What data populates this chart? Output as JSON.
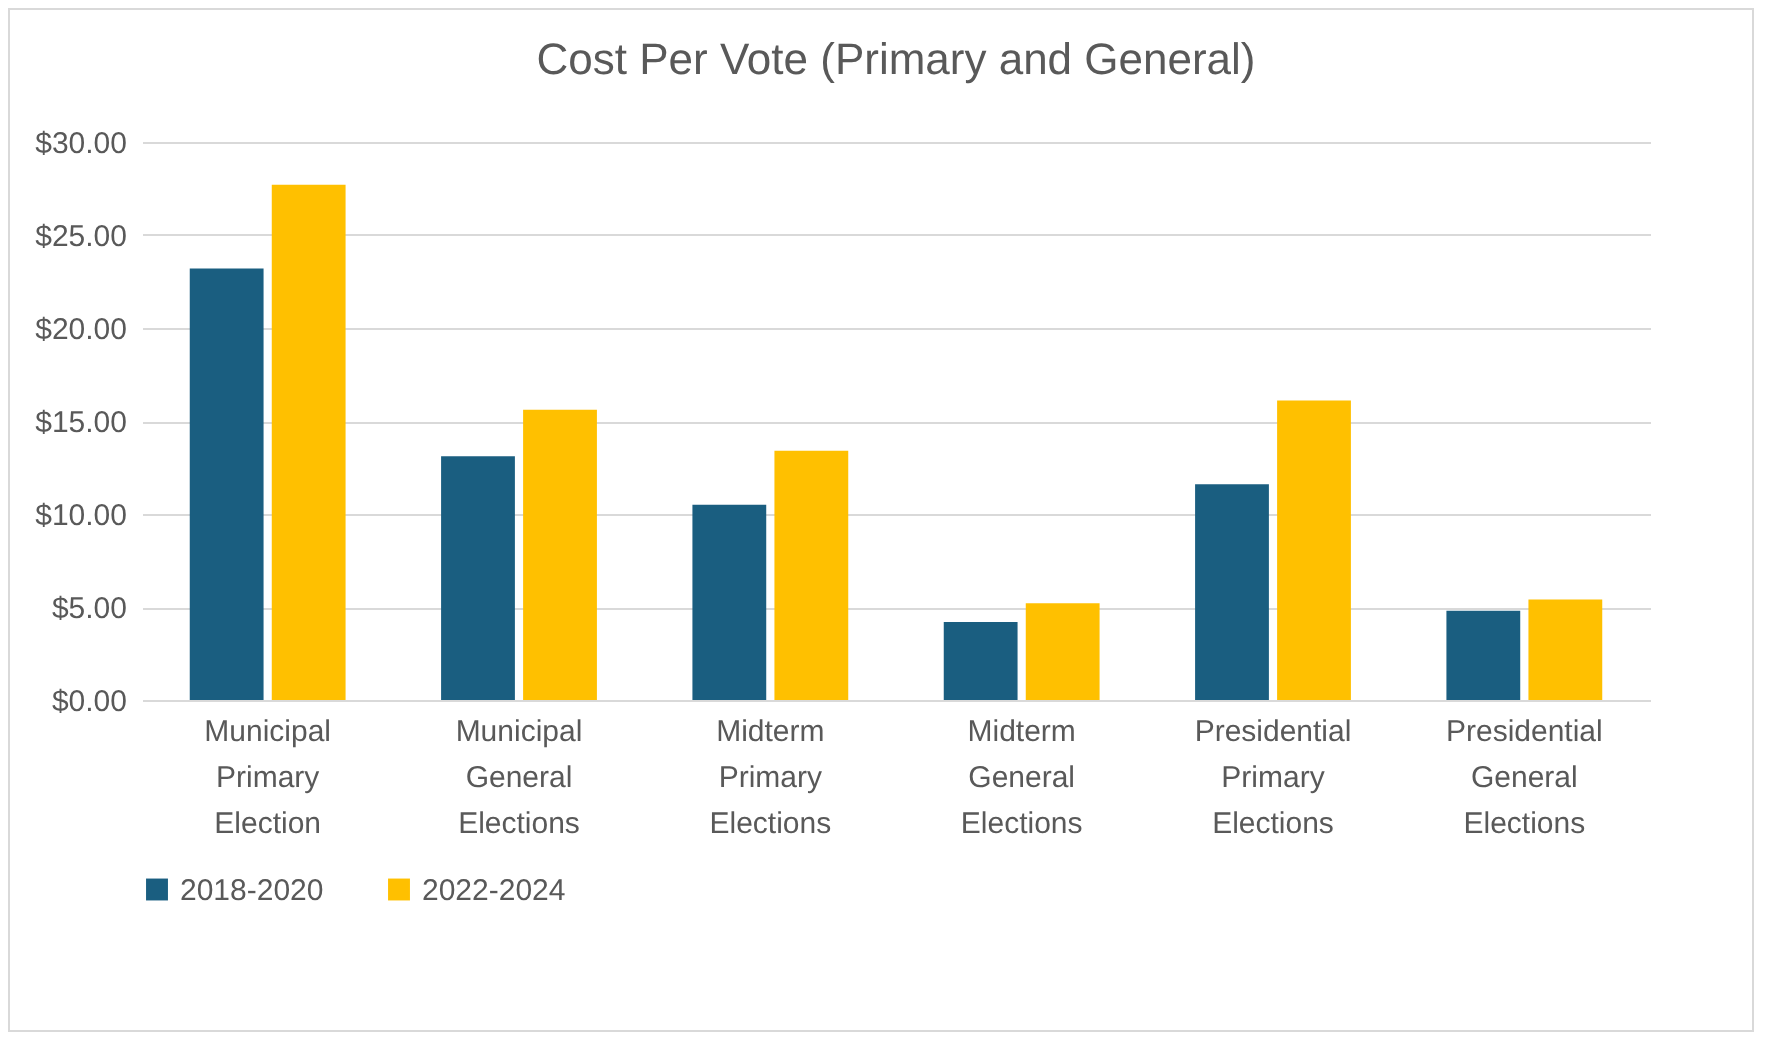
{
  "chart_data": {
    "type": "bar",
    "title": "Cost Per Vote (Primary and General)",
    "categories": [
      "Municipal Primary Election",
      "Municipal General Elections",
      "Midterm Primary Elections",
      "Midterm General Elections",
      "Presidential Primary Elections",
      "Presidential General Elections"
    ],
    "series": [
      {
        "name": "2018-2020",
        "color": "#1a5e80",
        "values": [
          23.2,
          13.1,
          10.5,
          4.2,
          11.6,
          4.8
        ]
      },
      {
        "name": "2022-2024",
        "color": "#ffc000",
        "values": [
          27.7,
          15.6,
          13.4,
          5.2,
          16.1,
          5.4
        ]
      }
    ],
    "ylim": [
      0,
      30
    ],
    "yticks": [
      {
        "value": 0,
        "label": "$0.00"
      },
      {
        "value": 5,
        "label": "$5.00"
      },
      {
        "value": 10,
        "label": "$10.00"
      },
      {
        "value": 15,
        "label": "$15.00"
      },
      {
        "value": 20,
        "label": "$20.00"
      },
      {
        "value": 25,
        "label": "$25.00"
      },
      {
        "value": 30,
        "label": "$30.00"
      }
    ],
    "grid": "y",
    "legend": "bottom"
  }
}
